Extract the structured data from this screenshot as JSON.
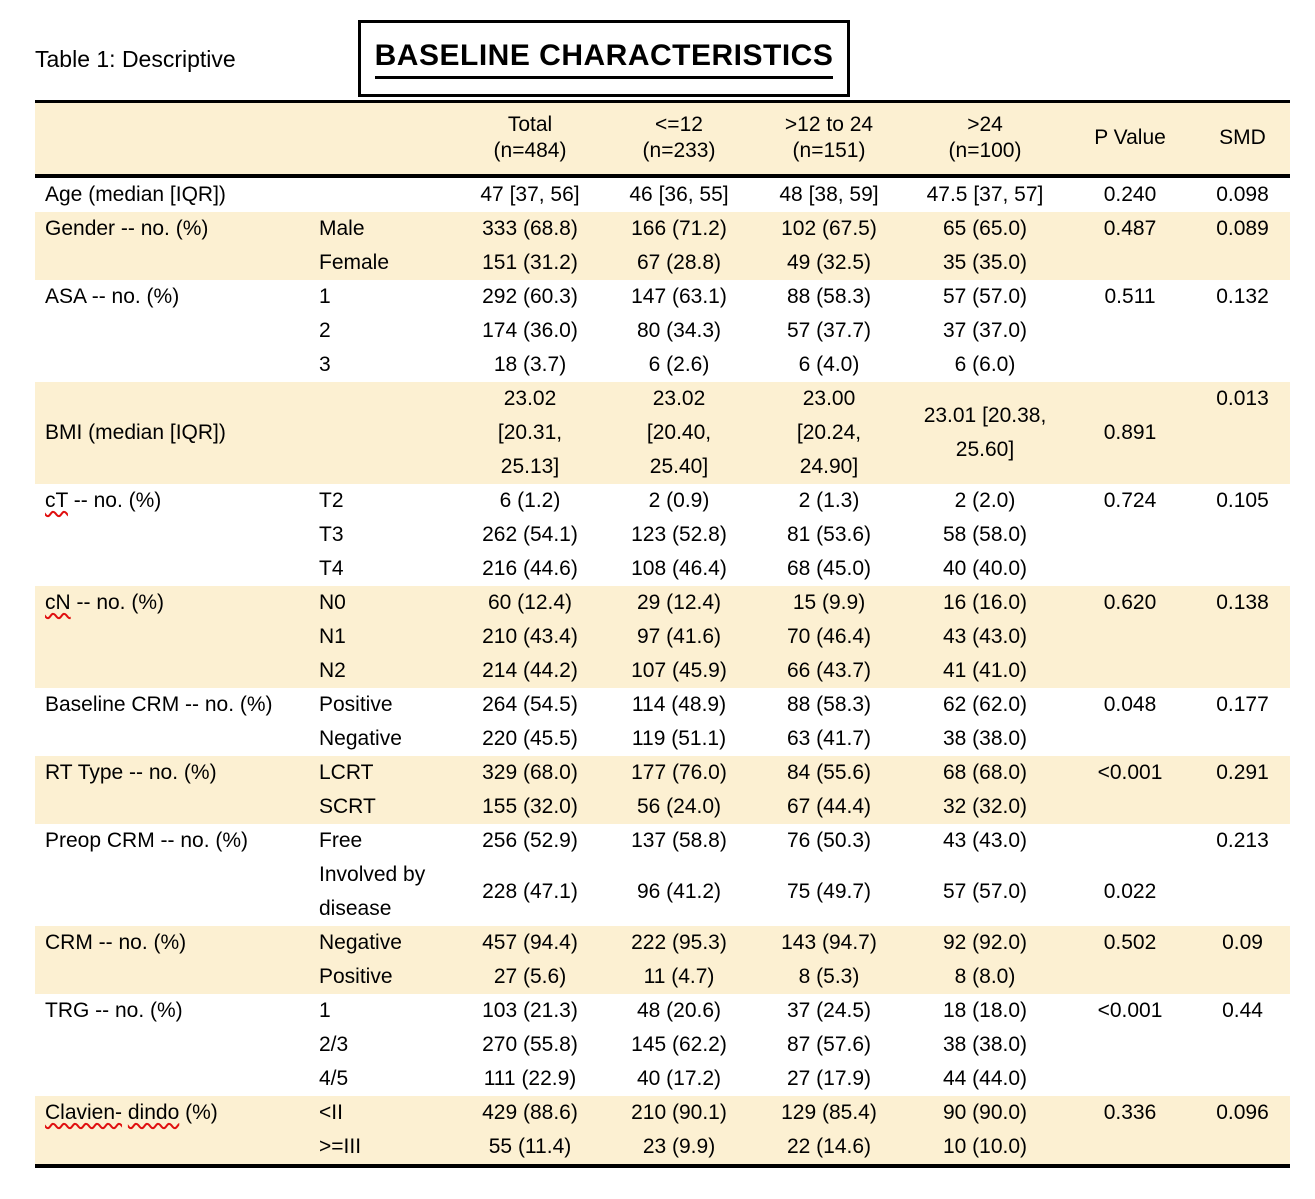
{
  "page": {
    "doc_label": "Table 1: Descriptive",
    "title": "BASELINE CHARACTERISTICS"
  },
  "colors": {
    "row_highlight": "#FCF0D2",
    "squiggle_red": "#E01010",
    "border": "#000000"
  },
  "table": {
    "p_label": "P Value",
    "smd_label": "SMD",
    "columns": [
      {
        "label": "Total",
        "sub": "(n=484)"
      },
      {
        "label": "<=12",
        "sub": "(n=233)"
      },
      {
        "label": ">12 to 24",
        "sub": "(n=151)"
      },
      {
        "label": ">24",
        "sub": "(n=100)"
      }
    ],
    "groups": [
      {
        "label": "Age (median [IQR])",
        "bg": "white",
        "p": "0.240",
        "smd": "0.098",
        "rows": [
          {
            "sub": "",
            "values": [
              "47 [37, 56]",
              "46 [36, 55]",
              "48 [38, 59]",
              "47.5 [37, 57]"
            ]
          }
        ]
      },
      {
        "label": "Gender -- no. (%)",
        "bg": "cream",
        "p": "0.487",
        "smd": "0.089",
        "rows": [
          {
            "sub": "Male",
            "values": [
              "333 (68.8)",
              "166 (71.2)",
              "102 (67.5)",
              "65 (65.0)"
            ]
          },
          {
            "sub": "Female",
            "values": [
              "151 (31.2)",
              "67 (28.8)",
              "49 (32.5)",
              "35 (35.0)"
            ]
          }
        ]
      },
      {
        "label": "ASA -- no. (%)",
        "bg": "white",
        "p": "0.511",
        "smd": "0.132",
        "rows": [
          {
            "sub": "1",
            "values": [
              "292 (60.3)",
              "147 (63.1)",
              "88 (58.3)",
              "57 (57.0)"
            ]
          },
          {
            "sub": "2",
            "values": [
              "174 (36.0)",
              "80 (34.3)",
              "57 (37.7)",
              "37 (37.0)"
            ]
          },
          {
            "sub": "3",
            "values": [
              "18 (3.7)",
              "6 (2.6)",
              "6 (4.0)",
              "6 (6.0)"
            ]
          }
        ]
      },
      {
        "label": "BMI (median [IQR])",
        "bg": "cream",
        "p": "0.891",
        "smd": "0.013",
        "smd_valign": "top",
        "rows": [
          {
            "sub": "",
            "values": [
              "23.02\n[20.31,\n25.13]",
              "23.02\n[20.40,\n25.40]",
              "23.00\n[20.24,\n24.90]",
              "23.01 [20.38,\n25.60]"
            ]
          }
        ]
      },
      {
        "label": "cT -- no. (%)",
        "squiggles": [
          "cT"
        ],
        "bg": "white",
        "p": "0.724",
        "smd": "0.105",
        "rows": [
          {
            "sub": "T2",
            "values": [
              "6 (1.2)",
              "2 (0.9)",
              "2 (1.3)",
              "2 (2.0)"
            ]
          },
          {
            "sub": "T3",
            "values": [
              "262 (54.1)",
              "123 (52.8)",
              "81 (53.6)",
              "58 (58.0)"
            ]
          },
          {
            "sub": "T4",
            "values": [
              "216 (44.6)",
              "108 (46.4)",
              "68 (45.0)",
              "40 (40.0)"
            ]
          }
        ]
      },
      {
        "label": "cN -- no. (%)",
        "squiggles": [
          "cN"
        ],
        "bg": "cream",
        "p": "0.620",
        "smd": "0.138",
        "rows": [
          {
            "sub": "N0",
            "values": [
              "60 (12.4)",
              "29 (12.4)",
              "15 (9.9)",
              "16 (16.0)"
            ]
          },
          {
            "sub": "N1",
            "values": [
              "210 (43.4)",
              "97 (41.6)",
              "70 (46.4)",
              "43 (43.0)"
            ]
          },
          {
            "sub": "N2",
            "values": [
              "214 (44.2)",
              "107 (45.9)",
              "66 (43.7)",
              "41 (41.0)"
            ]
          }
        ]
      },
      {
        "label": "Baseline CRM -- no. (%)",
        "bg": "white",
        "p": "0.048",
        "smd": "0.177",
        "rows": [
          {
            "sub": "Positive",
            "values": [
              "264 (54.5)",
              "114 (48.9)",
              "88 (58.3)",
              "62 (62.0)"
            ]
          },
          {
            "sub": "Negative",
            "values": [
              "220 (45.5)",
              "119 (51.1)",
              "63 (41.7)",
              "38 (38.0)"
            ]
          }
        ]
      },
      {
        "label": "RT Type -- no. (%)",
        "bg": "cream",
        "p": "<0.001",
        "smd": "0.291",
        "rows": [
          {
            "sub": "LCRT",
            "values": [
              "329 (68.0)",
              "177 (76.0)",
              "84 (55.6)",
              "68 (68.0)"
            ]
          },
          {
            "sub": "SCRT",
            "values": [
              "155 (32.0)",
              "56 (24.0)",
              "67 (44.4)",
              "32 (32.0)"
            ]
          }
        ]
      },
      {
        "label": "Preop CRM -- no. (%)",
        "bg": "white",
        "p": "0.022",
        "p_row": 1,
        "smd": "0.213",
        "rows": [
          {
            "sub": "Free",
            "values": [
              "256 (52.9)",
              "137 (58.8)",
              "76 (50.3)",
              "43 (43.0)"
            ]
          },
          {
            "sub": "Involved by\ndisease",
            "values": [
              "228 (47.1)",
              "96 (41.2)",
              "75 (49.7)",
              "57 (57.0)"
            ]
          }
        ]
      },
      {
        "label": "CRM -- no. (%)",
        "bg": "cream",
        "p": "0.502",
        "smd": "0.09",
        "rows": [
          {
            "sub": "Negative",
            "values": [
              "457 (94.4)",
              "222 (95.3)",
              "143 (94.7)",
              "92 (92.0)"
            ]
          },
          {
            "sub": "Positive",
            "values": [
              "27 (5.6)",
              "11 (4.7)",
              "8 (5.3)",
              "8 (8.0)"
            ]
          }
        ]
      },
      {
        "label": "TRG -- no. (%)",
        "bg": "white",
        "p": "<0.001",
        "smd": "0.44",
        "rows": [
          {
            "sub": "1",
            "values": [
              "103 (21.3)",
              "48 (20.6)",
              "37 (24.5)",
              "18 (18.0)"
            ]
          },
          {
            "sub": "2/3",
            "values": [
              "270 (55.8)",
              "145 (62.2)",
              "87 (57.6)",
              "38 (38.0)"
            ]
          },
          {
            "sub": "4/5",
            "values": [
              "111 (22.9)",
              "40 (17.2)",
              "27 (17.9)",
              "44 (44.0)"
            ]
          }
        ]
      },
      {
        "label": "Clavien- dindo (%)",
        "squiggles": [
          "Clavien-",
          "dindo"
        ],
        "bg": "cream",
        "p": "0.336",
        "smd": "0.096",
        "rows": [
          {
            "sub": "<II",
            "values": [
              "429 (88.6)",
              "210 (90.1)",
              "129 (85.4)",
              "90 (90.0)"
            ]
          },
          {
            "sub": ">=III",
            "values": [
              "55 (11.4)",
              "23 (9.9)",
              "22 (14.6)",
              "10 (10.0)"
            ]
          }
        ]
      }
    ]
  }
}
